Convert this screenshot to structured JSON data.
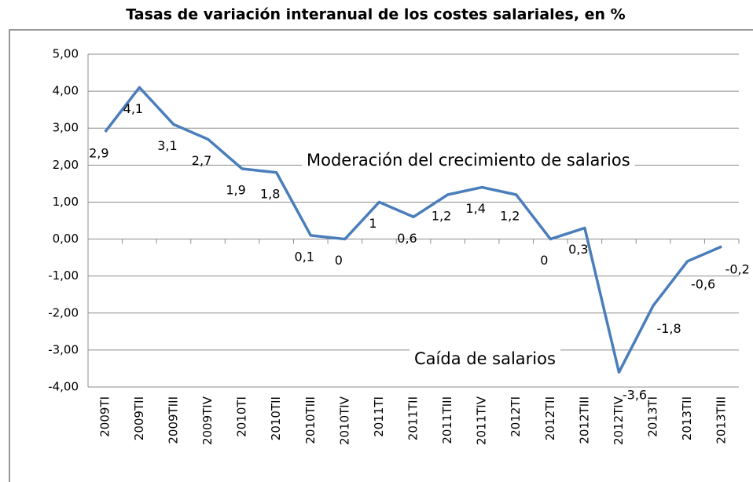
{
  "chart_data": {
    "type": "line",
    "title": "Tasas de variación interanual de los costes salariales, en %",
    "categories": [
      "2009TI",
      "2009TII",
      "2009TIII",
      "2009TIV",
      "2010TI",
      "2010TII",
      "2010TIII",
      "2010TIV",
      "2011TI",
      "2011TII",
      "2011TIII",
      "2011TIV",
      "2012TI",
      "2012TII",
      "2012TIII",
      "2012TIV",
      "2013TI",
      "2013TII",
      "2013TIII"
    ],
    "series": [
      {
        "name": "Tasa de variación",
        "color": "#4a7ebb",
        "values": [
          2.9,
          4.1,
          3.1,
          2.7,
          1.9,
          1.8,
          0.1,
          0,
          1,
          0.6,
          1.2,
          1.4,
          1.2,
          0,
          0.3,
          -3.6,
          -1.8,
          -0.6,
          -0.2
        ],
        "value_labels": [
          "2,9",
          "4,1",
          "3,1",
          "2,7",
          "1,9",
          "1,8",
          "0,1",
          "0",
          "1",
          "0,6",
          "1,2",
          "1,4",
          "1,2",
          "0",
          "0,3",
          "-3,6",
          "-1,8",
          "-0,6",
          "-0,2"
        ]
      }
    ],
    "negative_label_color": "#ff0000",
    "ylim": [
      -4,
      5
    ],
    "yticks": [
      {
        "value": -4,
        "label": "-4,00"
      },
      {
        "value": -3,
        "label": "-3,00"
      },
      {
        "value": -2,
        "label": "-2,00"
      },
      {
        "value": -1,
        "label": "-1,00"
      },
      {
        "value": 0,
        "label": "0,00"
      },
      {
        "value": 1,
        "label": "1,00"
      },
      {
        "value": 2,
        "label": "2,00"
      },
      {
        "value": 3,
        "label": "3,00"
      },
      {
        "value": 4,
        "label": "4,00"
      },
      {
        "value": 5,
        "label": "5,00"
      }
    ],
    "grid": true,
    "annotations": [
      {
        "text": "Moderación del crecimiento de salarios",
        "color": "#000000"
      },
      {
        "text": "Caída de salarios",
        "color": "#ff0000"
      }
    ]
  }
}
